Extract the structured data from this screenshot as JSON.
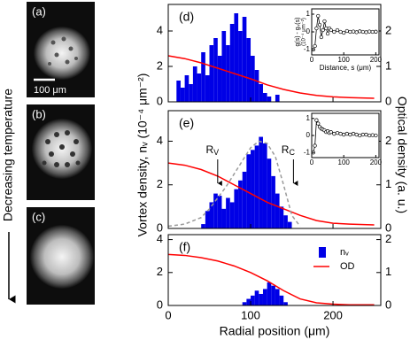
{
  "images": {
    "labels": [
      "(a)",
      "(b)",
      "(c)"
    ],
    "scale_bar": "100 μm",
    "side_label": "Decreasing temperature"
  },
  "chart_data": [
    {
      "type": "histogram",
      "label": "(d)",
      "bins": [
        10,
        15,
        20,
        25,
        30,
        35,
        40,
        45,
        50,
        55,
        60,
        65,
        70,
        75,
        80,
        85,
        90,
        95,
        100,
        105,
        110,
        115,
        120,
        125,
        130,
        135,
        140
      ],
      "values": [
        1.2,
        0.8,
        1.5,
        1.0,
        2.0,
        1.6,
        2.8,
        1.5,
        3.2,
        3.6,
        2.6,
        4.0,
        3.2,
        4.4,
        5.0,
        4.0,
        4.8,
        3.6,
        2.6,
        1.8,
        1.0,
        0.5,
        0.3,
        0,
        0.4,
        0
      ],
      "color": "#0000e6",
      "lines": [
        {
          "color": "#ff0000",
          "axis": "y2",
          "x": [
            0,
            20,
            40,
            60,
            80,
            100,
            120,
            140,
            160,
            180,
            200,
            220,
            250
          ],
          "values": [
            1.3,
            1.22,
            1.1,
            0.95,
            0.8,
            0.65,
            0.48,
            0.35,
            0.25,
            0.18,
            0.14,
            0.12,
            0.1
          ]
        }
      ],
      "xlim": [
        0,
        258
      ],
      "xticks": [
        0,
        100,
        200
      ],
      "xtick_labels": false,
      "ylim": [
        0,
        5.5
      ],
      "yticks": [
        0,
        2,
        4
      ],
      "y2lim": [
        0,
        2.75
      ],
      "y2ticks": [
        0,
        1,
        2
      ]
    },
    {
      "type": "histogram",
      "label": "(e)",
      "bins": [
        40,
        45,
        50,
        55,
        60,
        65,
        70,
        75,
        80,
        85,
        90,
        95,
        100,
        105,
        110,
        115,
        120,
        125,
        130,
        135,
        140,
        145,
        150
      ],
      "values": [
        0.2,
        0.8,
        1.2,
        1.6,
        1.5,
        0.9,
        1.4,
        1.2,
        1.8,
        2.2,
        2.6,
        3.4,
        3.6,
        3.8,
        4.2,
        3.9,
        3.2,
        2.4,
        1.6,
        1.0,
        0.6,
        0.3
      ],
      "color": "#0000e6",
      "lines": [
        {
          "color": "#ff0000",
          "axis": "y2",
          "x": [
            0,
            20,
            40,
            60,
            80,
            100,
            120,
            140,
            160,
            180,
            200,
            220,
            250
          ],
          "values": [
            1.5,
            1.45,
            1.35,
            1.2,
            1.0,
            0.8,
            0.6,
            0.45,
            0.3,
            0.18,
            0.12,
            0.1,
            0.08
          ]
        },
        {
          "color": "#9a9a9a",
          "dash": true,
          "x": [
            0,
            20,
            40,
            50,
            60,
            70,
            80,
            90,
            100,
            110,
            120,
            130,
            140,
            150,
            160
          ],
          "values": [
            0.1,
            0.2,
            0.5,
            0.9,
            1.4,
            1.9,
            2.5,
            3.1,
            3.7,
            4.0,
            3.9,
            3.3,
            2.0,
            0.6,
            0.1
          ]
        }
      ],
      "annotations": [
        {
          "text": "R",
          "sub": "V",
          "x": 60
        },
        {
          "text": "R",
          "sub": "C",
          "x": 152
        }
      ],
      "xlim": [
        0,
        258
      ],
      "xticks": [
        0,
        100,
        200
      ],
      "xtick_labels": false,
      "ylim": [
        0,
        5.4
      ],
      "yticks": [
        0,
        2,
        4
      ],
      "y2lim": [
        0,
        2.7
      ],
      "y2ticks": [
        0,
        1,
        2
      ],
      "ylabel": "Vortex density, nᵥ (10⁻⁴ μm⁻²)",
      "y2label": "Optical density (a. u.)"
    },
    {
      "type": "histogram",
      "label": "(f)",
      "name": "nᵥ",
      "bins": [
        90,
        95,
        100,
        105,
        110,
        115,
        120,
        125,
        130,
        135,
        140,
        145
      ],
      "values": [
        0.2,
        0.4,
        0.6,
        0.9,
        0.7,
        1.0,
        1.4,
        1.2,
        1.0,
        0.6,
        0.2
      ],
      "color": "#0000e6",
      "lines": [
        {
          "name": "OD",
          "color": "#ff0000",
          "axis": "y2",
          "x": [
            0,
            20,
            40,
            60,
            80,
            100,
            120,
            140,
            160,
            180,
            200,
            220,
            250
          ],
          "values": [
            1.55,
            1.52,
            1.45,
            1.35,
            1.2,
            1.0,
            0.75,
            0.45,
            0.2,
            0.08,
            0.04,
            0.02,
            0.02
          ]
        }
      ],
      "xlim": [
        0,
        258
      ],
      "xticks": [
        0,
        100,
        200
      ],
      "xtick_labels": true,
      "xlabel": "Radial position (μm)",
      "ylim": [
        0,
        4.3
      ],
      "yticks": [
        0,
        2,
        4
      ],
      "y2lim": [
        0,
        2.15
      ],
      "y2ticks": [
        0,
        1,
        2
      ]
    },
    {
      "type": "scatter-line",
      "x": [
        5,
        10,
        15,
        20,
        25,
        30,
        35,
        40,
        45,
        50,
        55,
        60,
        70,
        80,
        90,
        100,
        110,
        120,
        130,
        140,
        150,
        160,
        170,
        180,
        190,
        200
      ],
      "values": [
        -1,
        -0.8,
        0.2,
        0.9,
        0.4,
        -0.3,
        0.1,
        0.6,
        0.2,
        -0.1,
        0.2,
        0.1,
        0,
        0.1,
        0,
        -0.05,
        0.05,
        0,
        0.02,
        -0.02,
        0.03,
        0,
        -0.02,
        0.02,
        0,
        0.01
      ],
      "xlim": [
        0,
        210
      ],
      "xticks": [
        0,
        100,
        200
      ],
      "ylim": [
        -1.3,
        1.3
      ],
      "yticks": [
        -1,
        0,
        1
      ],
      "xlabel": "Distance, s (μm)",
      "ylabel": "g(s) - gₛ(s)",
      "ylabel_units": "(10⁻⁴ μm⁻²)"
    },
    {
      "type": "scatter-line",
      "x": [
        5,
        10,
        15,
        20,
        25,
        30,
        35,
        40,
        45,
        50,
        55,
        60,
        70,
        80,
        90,
        100,
        110,
        120,
        130,
        140,
        150,
        160,
        170,
        180,
        190,
        200
      ],
      "values": [
        -1,
        -0.6,
        0.9,
        0.7,
        0.5,
        0.4,
        0.35,
        0.3,
        0.2,
        0.25,
        0.15,
        0.2,
        0.1,
        0.15,
        0.1,
        0.05,
        0.1,
        0.05,
        0.1,
        0.05,
        0,
        0.05,
        0.05,
        0,
        0.02,
        0
      ],
      "xlim": [
        0,
        210
      ],
      "xticks": [
        0,
        100,
        200
      ],
      "ylim": [
        -1.3,
        1.3
      ],
      "yticks": [
        -1,
        0,
        1
      ]
    }
  ]
}
